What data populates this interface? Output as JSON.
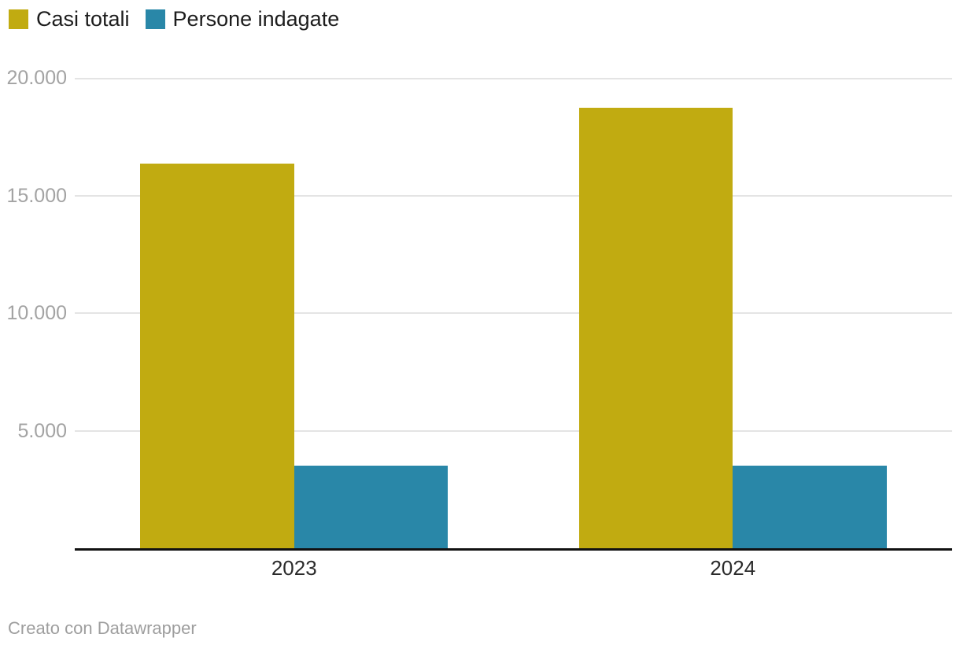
{
  "legend_position": "top-left",
  "footer": {
    "attribution": "Creato con Datawrapper"
  },
  "chart_data": {
    "type": "bar",
    "title": "",
    "xlabel": "",
    "ylabel": "",
    "categories": [
      "2023",
      "2024"
    ],
    "series": [
      {
        "name": "Casi totali",
        "color": "#c1ab11",
        "values": [
          16350,
          18730
        ]
      },
      {
        "name": "Persone indagate",
        "color": "#2987a8",
        "values": [
          3500,
          3500
        ]
      }
    ],
    "ylim": [
      0,
      20000
    ],
    "y_ticks": [
      {
        "value": 20000,
        "label": "20.000"
      },
      {
        "value": 15000,
        "label": "15.000"
      },
      {
        "value": 10000,
        "label": "10.000"
      },
      {
        "value": 5000,
        "label": "5.000"
      }
    ],
    "grid": true,
    "legend_position": "top-left",
    "number_format": "it-IT"
  }
}
